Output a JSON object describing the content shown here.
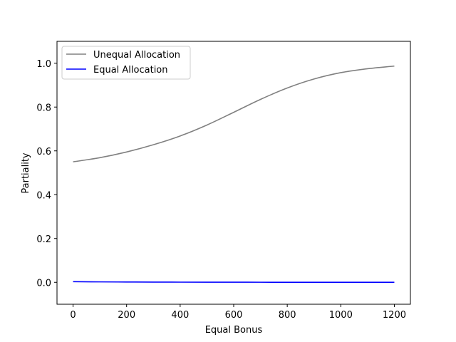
{
  "chart_data": {
    "type": "line",
    "xlabel": "Equal Bonus",
    "ylabel": "Partiality",
    "xlim": [
      -60,
      1260
    ],
    "ylim": [
      -0.1,
      1.1
    ],
    "xticks": [
      0,
      200,
      400,
      600,
      800,
      1000,
      1200
    ],
    "yticks": [
      0.0,
      0.2,
      0.4,
      0.6,
      0.8,
      1.0
    ],
    "xtick_labels": [
      "0",
      "200",
      "400",
      "600",
      "800",
      "1000",
      "1200"
    ],
    "ytick_labels": [
      "0.0",
      "0.2",
      "0.4",
      "0.6",
      "0.8",
      "1.0"
    ],
    "grid": false,
    "legend_position": "top-left",
    "x": [
      0,
      100,
      200,
      300,
      400,
      500,
      600,
      700,
      800,
      900,
      1000,
      1100,
      1200
    ],
    "series": [
      {
        "name": "Unequal Allocation",
        "color": "#808080",
        "values": [
          0.55,
          0.569,
          0.595,
          0.628,
          0.668,
          0.718,
          0.776,
          0.835,
          0.887,
          0.928,
          0.957,
          0.975,
          0.987
        ]
      },
      {
        "name": "Equal Allocation",
        "color": "#0000ff",
        "values": [
          0.003,
          0.002,
          0.0015,
          0.001,
          0.0008,
          0.0006,
          0.0005,
          0.0004,
          0.0003,
          0.0003,
          0.0002,
          0.0002,
          0.0002
        ]
      }
    ]
  }
}
